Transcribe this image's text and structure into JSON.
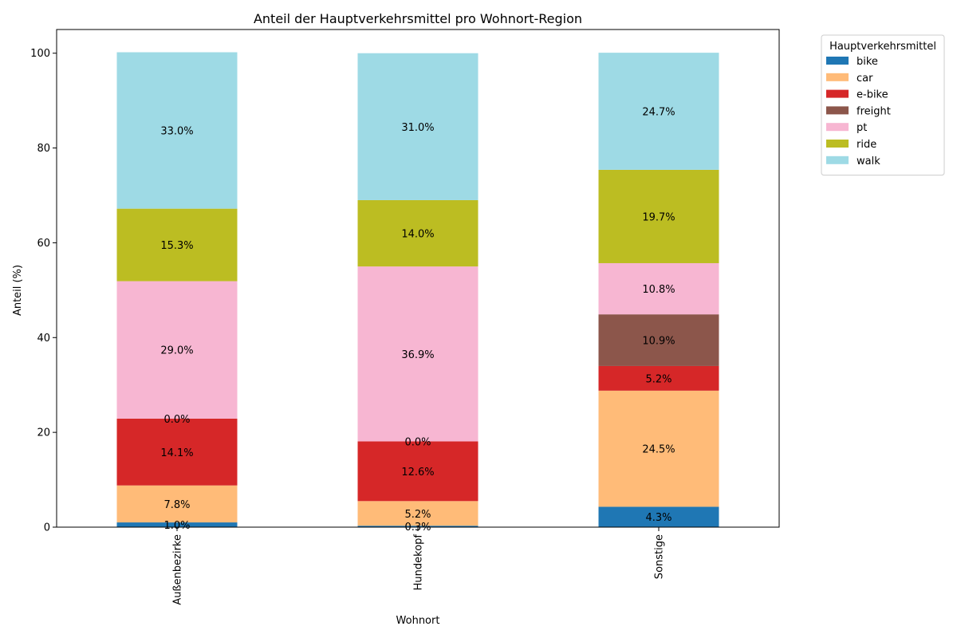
{
  "chart_data": {
    "type": "bar",
    "stacked": true,
    "title": "Anteil der Hauptverkehrsmittel pro Wohnort-Region",
    "xlabel": "Wohnort",
    "ylabel": "Anteil (%)",
    "ylim": [
      0,
      105
    ],
    "yticks": [
      "0",
      "20",
      "40",
      "60",
      "80",
      "100"
    ],
    "categories": [
      "Außenbezirke",
      "Hundekopf",
      "Sonstige"
    ],
    "legend_title": "Hauptverkehrsmittel",
    "legend_position": "outside-top-right",
    "grid": false,
    "series": [
      {
        "name": "bike",
        "color": "#1f77b4",
        "values": [
          1.0,
          0.3,
          4.3
        ],
        "labels": [
          "1.0%",
          "0.3%",
          "4.3%"
        ]
      },
      {
        "name": "car",
        "color": "#ffbb78",
        "values": [
          7.8,
          5.2,
          24.5
        ],
        "labels": [
          "7.8%",
          "5.2%",
          "24.5%"
        ]
      },
      {
        "name": "e-bike",
        "color": "#d62728",
        "values": [
          14.1,
          12.6,
          5.2
        ],
        "labels": [
          "14.1%",
          "12.6%",
          "5.2%"
        ]
      },
      {
        "name": "freight",
        "color": "#8c564b",
        "values": [
          0.0,
          0.0,
          10.9
        ],
        "labels": [
          "0.0%",
          "0.0%",
          "10.9%"
        ]
      },
      {
        "name": "pt",
        "color": "#f7b6d2",
        "values": [
          29.0,
          36.9,
          10.8
        ],
        "labels": [
          "29.0%",
          "36.9%",
          "10.8%"
        ]
      },
      {
        "name": "ride",
        "color": "#bcbd22",
        "values": [
          15.3,
          14.0,
          19.7
        ],
        "labels": [
          "15.3%",
          "14.0%",
          "19.7%"
        ]
      },
      {
        "name": "walk",
        "color": "#9edae5",
        "values": [
          33.0,
          31.0,
          24.7
        ],
        "labels": [
          "33.0%",
          "31.0%",
          "24.7%"
        ]
      }
    ]
  }
}
